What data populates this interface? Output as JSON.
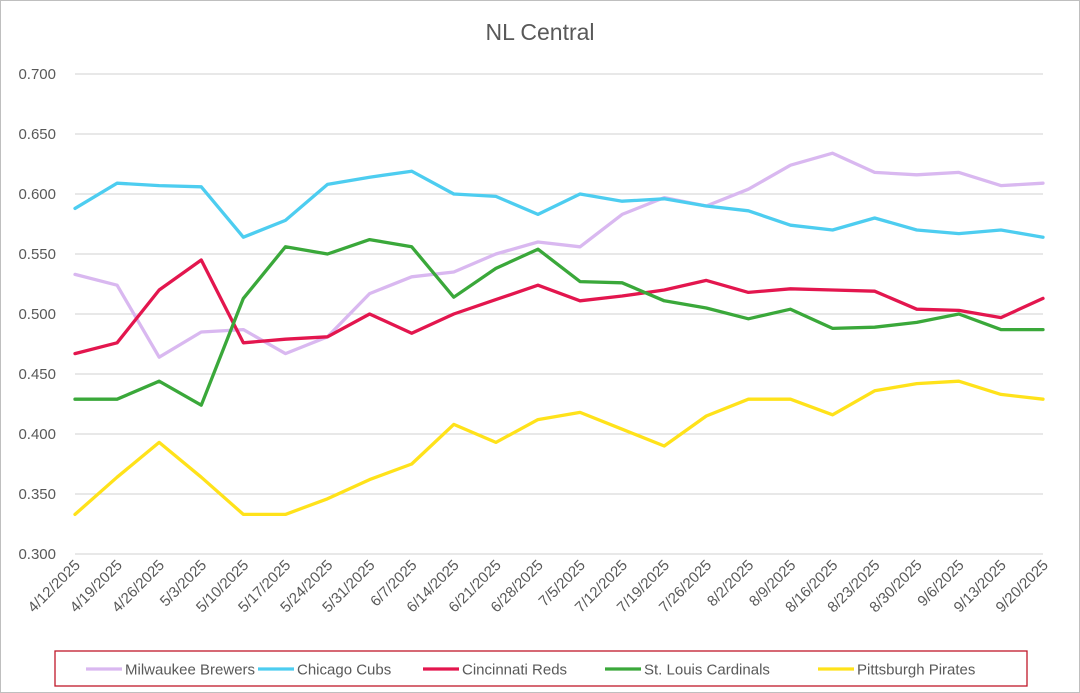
{
  "chart_data": {
    "type": "line",
    "title": "NL Central",
    "xlabel": "",
    "ylabel": "",
    "ylim": [
      0.3,
      0.7
    ],
    "y_ticks": [
      "0.300",
      "0.350",
      "0.400",
      "0.450",
      "0.500",
      "0.550",
      "0.600",
      "0.650",
      "0.700"
    ],
    "grid": true,
    "legend_position": "bottom",
    "categories": [
      "4/12/2025",
      "4/19/2025",
      "4/26/2025",
      "5/3/2025",
      "5/10/2025",
      "5/17/2025",
      "5/24/2025",
      "5/31/2025",
      "6/7/2025",
      "6/14/2025",
      "6/21/2025",
      "6/28/2025",
      "7/5/2025",
      "7/12/2025",
      "7/19/2025",
      "7/26/2025",
      "8/2/2025",
      "8/9/2025",
      "8/16/2025",
      "8/23/2025",
      "8/30/2025",
      "9/6/2025",
      "9/13/2025",
      "9/20/2025"
    ],
    "series": [
      {
        "name": "Milwaukee Brewers",
        "color": "#d9b8f0",
        "values": [
          0.533,
          0.524,
          0.464,
          0.485,
          0.487,
          0.467,
          0.481,
          0.517,
          0.531,
          0.535,
          0.55,
          0.56,
          0.556,
          0.583,
          0.597,
          0.59,
          0.604,
          0.624,
          0.634,
          0.618,
          0.616,
          0.618,
          0.607,
          0.609
        ]
      },
      {
        "name": "Chicago Cubs",
        "color": "#4dcdf0",
        "values": [
          0.588,
          0.609,
          0.607,
          0.606,
          0.564,
          0.578,
          0.608,
          0.614,
          0.619,
          0.6,
          0.598,
          0.583,
          0.6,
          0.594,
          0.596,
          0.59,
          0.586,
          0.574,
          0.57,
          0.58,
          0.57,
          0.567,
          0.57,
          0.564
        ]
      },
      {
        "name": "Cincinnati Reds",
        "color": "#e3164e",
        "values": [
          0.467,
          0.476,
          0.52,
          0.545,
          0.476,
          0.479,
          0.481,
          0.5,
          0.484,
          0.5,
          0.512,
          0.524,
          0.511,
          0.515,
          0.52,
          0.528,
          0.518,
          0.521,
          0.52,
          0.519,
          0.504,
          0.503,
          0.497,
          0.513
        ]
      },
      {
        "name": "St. Louis Cardinals",
        "color": "#3aa83a",
        "values": [
          0.429,
          0.429,
          0.444,
          0.424,
          0.513,
          0.556,
          0.55,
          0.562,
          0.556,
          0.514,
          0.538,
          0.554,
          0.527,
          0.526,
          0.511,
          0.505,
          0.496,
          0.504,
          0.488,
          0.489,
          0.493,
          0.5,
          0.487,
          0.487
        ]
      },
      {
        "name": "Pittsburgh Pirates",
        "color": "#ffe21a",
        "values": [
          0.333,
          0.364,
          0.393,
          0.364,
          0.333,
          0.333,
          0.346,
          0.362,
          0.375,
          0.408,
          0.393,
          0.412,
          0.418,
          0.404,
          0.39,
          0.415,
          0.429,
          0.429,
          0.416,
          0.436,
          0.442,
          0.444,
          0.433,
          0.429
        ]
      }
    ]
  }
}
